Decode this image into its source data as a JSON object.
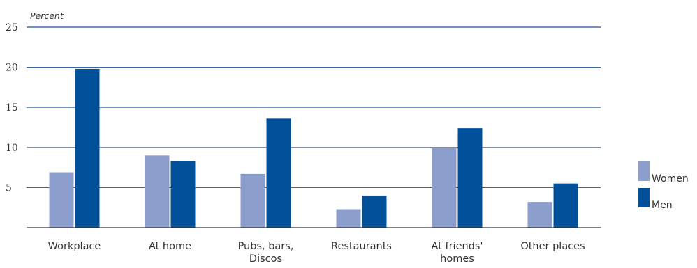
{
  "chart_data": {
    "type": "bar",
    "ylabel": "Percent",
    "ylim": [
      0,
      25
    ],
    "yticks": [
      "5",
      "10",
      "15",
      "20",
      "25"
    ],
    "grid": true,
    "legend_position": "right",
    "categories": [
      [
        "Workplace"
      ],
      [
        "At home"
      ],
      [
        "Pubs, bars,",
        "Discos"
      ],
      [
        "Restaurants"
      ],
      [
        "At friends'",
        "homes"
      ],
      [
        "Other places"
      ]
    ],
    "series": [
      {
        "name": "Women",
        "color": "#8c9fcc",
        "values": [
          6.9,
          9.0,
          6.7,
          2.3,
          9.9,
          3.2
        ]
      },
      {
        "name": "Men",
        "color": "#00509a",
        "values": [
          19.8,
          8.3,
          13.6,
          4.0,
          12.4,
          5.5
        ]
      }
    ],
    "gridline_color": "#1f4f99",
    "axis_color": "#333333"
  }
}
